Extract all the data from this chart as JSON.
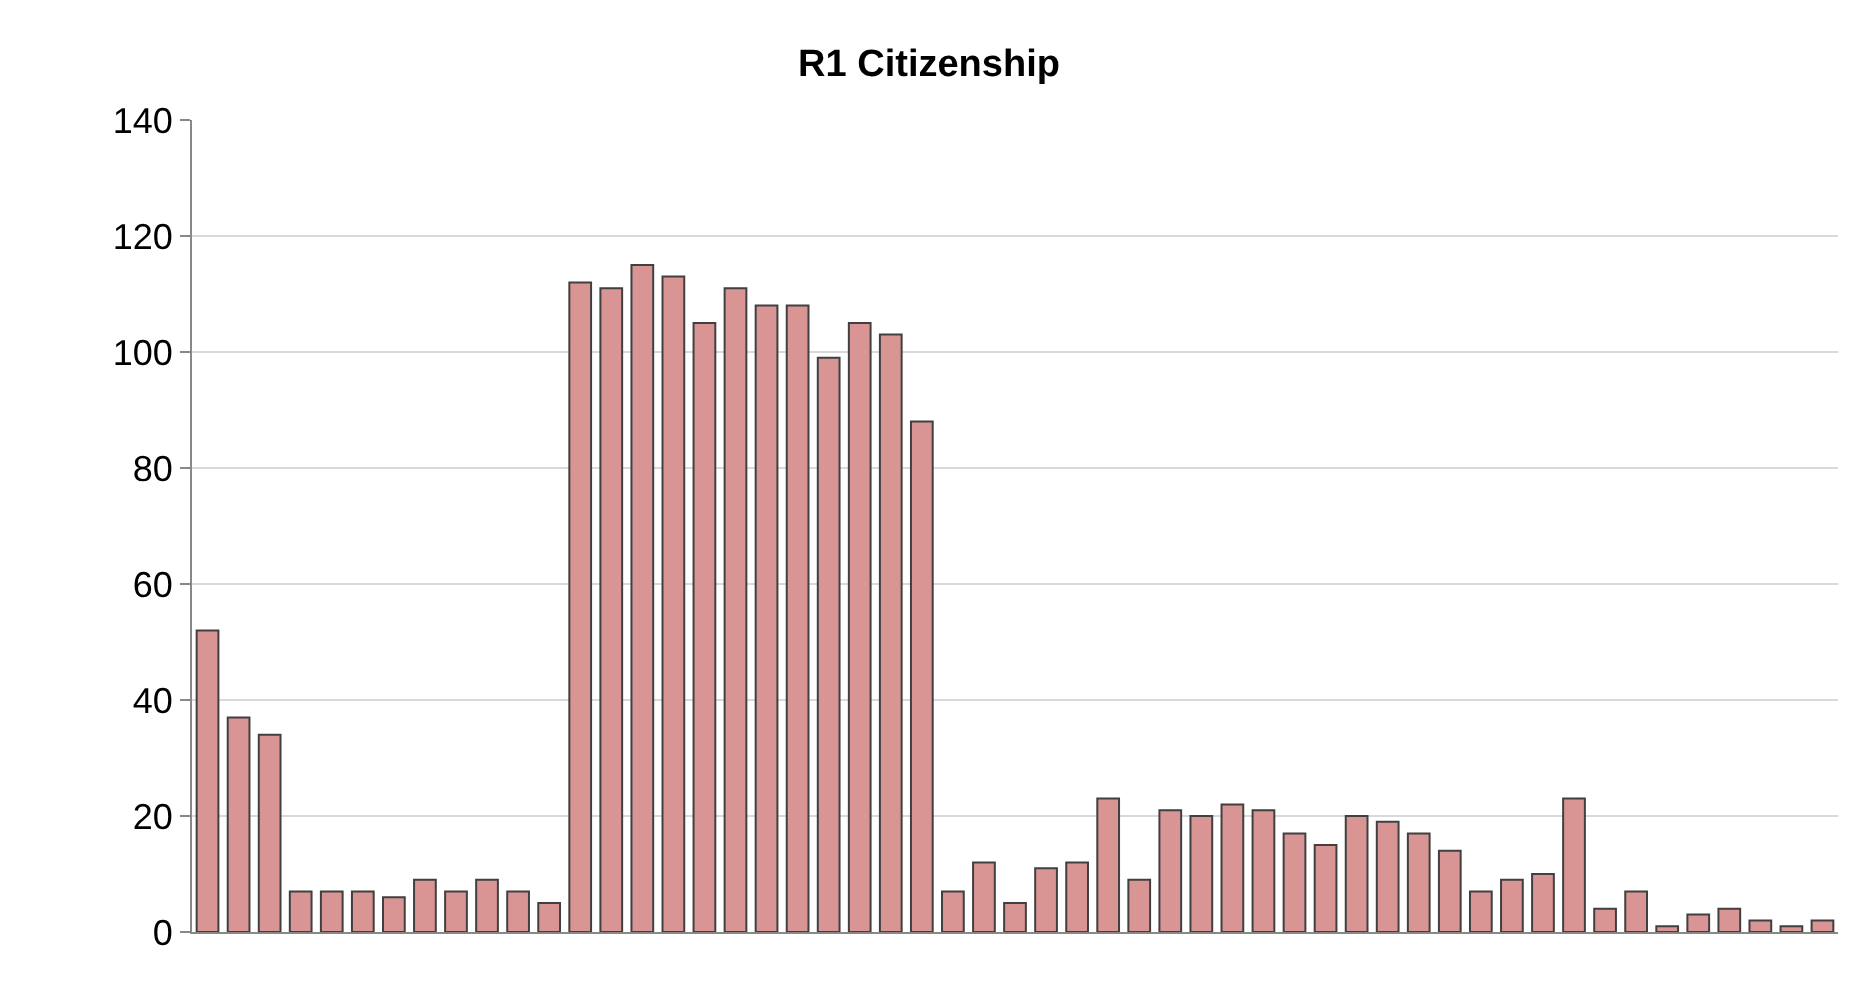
{
  "chart_data": {
    "type": "bar",
    "title": "R1 Citizenship",
    "categories": [
      null,
      null,
      null,
      null,
      null,
      null,
      null,
      null,
      null,
      null,
      null,
      null,
      null,
      null,
      null,
      null,
      null,
      null,
      null,
      null,
      null,
      null,
      null,
      null,
      null,
      null,
      null,
      null,
      null,
      null,
      null,
      null,
      null,
      null,
      null,
      null,
      null,
      null,
      null,
      null,
      null,
      null,
      null,
      null,
      null,
      null,
      null,
      null,
      null,
      null,
      null,
      null,
      null
    ],
    "values": [
      52,
      37,
      34,
      7,
      7,
      7,
      6,
      9,
      7,
      9,
      7,
      5,
      112,
      111,
      115,
      113,
      105,
      111,
      108,
      108,
      99,
      105,
      103,
      88,
      7,
      12,
      5,
      11,
      12,
      23,
      9,
      21,
      20,
      22,
      21,
      17,
      15,
      20,
      19,
      17,
      14,
      7,
      9,
      10,
      23,
      4,
      7,
      1,
      3,
      4,
      2,
      1,
      2
    ],
    "color": "#d99594",
    "ylim": [
      0,
      140
    ],
    "yticks": [
      0,
      20,
      40,
      60,
      80,
      100,
      120,
      140
    ],
    "grid": "y"
  }
}
